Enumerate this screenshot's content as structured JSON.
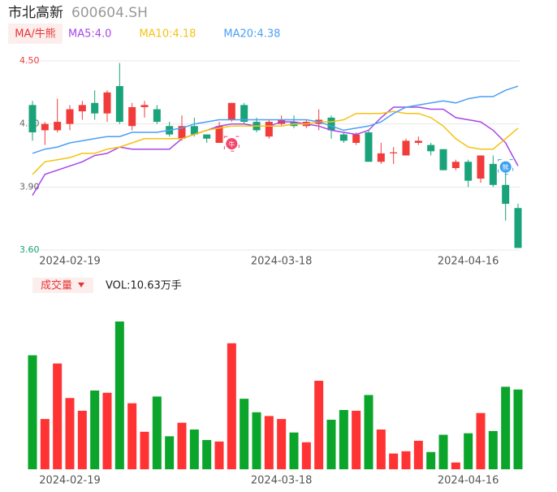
{
  "header": {
    "title": "市北高新",
    "code": "600604.SH"
  },
  "chart_data": [
    {
      "type": "candlestick",
      "toggle_label": "MA/牛熊",
      "categories": [
        null,
        null,
        null,
        "2024-02-19",
        null,
        null,
        null,
        null,
        null,
        null,
        null,
        null,
        null,
        null,
        null,
        null,
        null,
        null,
        null,
        null,
        "2024-03-18",
        null,
        null,
        null,
        null,
        null,
        null,
        null,
        null,
        null,
        null,
        null,
        null,
        null,
        null,
        "2024-04-16",
        null,
        null,
        null,
        null
      ],
      "open": [
        4.29,
        4.17,
        4.17,
        4.2,
        4.26,
        4.3,
        4.25,
        4.38,
        4.19,
        4.28,
        4.27,
        4.19,
        4.13,
        4.19,
        4.15,
        4.11,
        4.22,
        4.29,
        4.21,
        4.14,
        4.2,
        4.21,
        4.19,
        4.2,
        4.23,
        4.15,
        4.11,
        4.16,
        4.02,
        4.06,
        4.05,
        4.11,
        4.1,
        4.08,
        3.99,
        4.02,
        3.94,
        4.01,
        3.91,
        3.8
      ],
      "high": [
        4.31,
        4.21,
        4.32,
        4.29,
        4.31,
        4.36,
        4.36,
        4.49,
        4.3,
        4.31,
        4.29,
        4.21,
        4.24,
        4.23,
        4.15,
        4.21,
        4.3,
        4.3,
        4.23,
        4.22,
        4.24,
        4.24,
        4.22,
        4.27,
        4.24,
        4.16,
        4.16,
        4.17,
        4.11,
        4.09,
        4.13,
        4.14,
        4.11,
        4.08,
        4.03,
        4.03,
        4.05,
        4.05,
        3.98,
        3.82
      ],
      "low": [
        4.12,
        4.1,
        4.16,
        4.17,
        4.22,
        4.22,
        4.21,
        4.2,
        4.17,
        4.23,
        4.2,
        4.14,
        4.12,
        4.14,
        4.11,
        4.11,
        4.21,
        4.2,
        4.16,
        4.13,
        4.19,
        4.18,
        4.18,
        4.17,
        4.13,
        4.11,
        4.1,
        4.02,
        4.01,
        4.01,
        4.05,
        4.1,
        4.05,
        3.98,
        3.98,
        3.9,
        3.92,
        3.9,
        3.74,
        3.61
      ],
      "close": [
        4.16,
        4.2,
        4.21,
        4.27,
        4.29,
        4.25,
        4.35,
        4.21,
        4.28,
        4.29,
        4.21,
        4.15,
        4.19,
        4.15,
        4.13,
        4.19,
        4.3,
        4.21,
        4.17,
        4.21,
        4.22,
        4.19,
        4.21,
        4.22,
        4.17,
        4.12,
        4.15,
        4.02,
        4.06,
        4.065,
        4.12,
        4.12,
        4.07,
        3.98,
        4.02,
        3.93,
        4.05,
        3.91,
        3.82,
        3.61
      ],
      "up_color": "#f23b3b",
      "down_color": "#1aa37a",
      "series": [
        {
          "name": "MA5:4.0",
          "color": "#a646e8",
          "values": [
            3.86,
            3.96,
            3.98,
            4.0,
            4.02,
            4.05,
            4.06,
            4.09,
            4.08,
            4.08,
            4.08,
            4.08,
            4.13,
            4.15,
            4.17,
            4.19,
            4.2,
            4.2,
            4.19,
            4.19,
            4.21,
            4.21,
            4.2,
            4.19,
            4.17,
            4.16,
            4.15,
            4.17,
            4.23,
            4.28,
            4.28,
            4.28,
            4.27,
            4.27,
            4.23,
            4.22,
            4.21,
            4.17,
            4.11,
            4.0
          ]
        },
        {
          "name": "MA10:4.18",
          "color": "#f5c211",
          "values": [
            3.96,
            4.02,
            4.03,
            4.04,
            4.06,
            4.06,
            4.08,
            4.09,
            4.11,
            4.13,
            4.13,
            4.13,
            4.13,
            4.15,
            4.17,
            4.18,
            4.19,
            4.19,
            4.19,
            4.19,
            4.19,
            4.2,
            4.2,
            4.21,
            4.21,
            4.22,
            4.25,
            4.25,
            4.25,
            4.26,
            4.25,
            4.25,
            4.23,
            4.19,
            4.13,
            4.09,
            4.08,
            4.08,
            4.13,
            4.18
          ]
        },
        {
          "name": "MA20:4.38",
          "color": "#4a9ff5",
          "values": [
            4.06,
            4.08,
            4.09,
            4.11,
            4.12,
            4.13,
            4.14,
            4.14,
            4.16,
            4.16,
            4.16,
            4.17,
            4.18,
            4.2,
            4.21,
            4.22,
            4.22,
            4.22,
            4.22,
            4.22,
            4.22,
            4.22,
            4.22,
            4.21,
            4.19,
            4.17,
            4.18,
            4.19,
            4.21,
            4.25,
            4.28,
            4.29,
            4.3,
            4.31,
            4.3,
            4.32,
            4.33,
            4.33,
            4.36,
            4.38
          ]
        }
      ],
      "ylim": [
        3.6,
        4.5
      ],
      "yticks": [
        {
          "value": 4.5,
          "label": "4.50"
        },
        {
          "value": 4.2,
          "label": "4.20"
        },
        {
          "value": 3.9,
          "label": "3.90"
        },
        {
          "value": 3.6,
          "label": "3.60"
        }
      ],
      "ytick_colors": [
        "#f23b3b",
        "#666666",
        "#666666",
        "#1aa37a"
      ],
      "grid": true,
      "markers": [
        {
          "label": "牛",
          "index": 16,
          "color": "#f2456a",
          "position": "below"
        },
        {
          "label": "熊",
          "index": 38,
          "color": "#3aa0f0",
          "position": "above"
        }
      ]
    },
    {
      "type": "bar",
      "label": "成交量",
      "indicator": "VOL:10.63万手",
      "categories": [
        null,
        null,
        null,
        "2024-02-19",
        null,
        null,
        null,
        null,
        null,
        null,
        null,
        null,
        null,
        null,
        null,
        null,
        null,
        null,
        null,
        null,
        "2024-03-18",
        null,
        null,
        null,
        null,
        null,
        null,
        null,
        null,
        null,
        null,
        null,
        null,
        null,
        null,
        "2024-04-16",
        null,
        null,
        null,
        null
      ],
      "values": [
        15.2,
        6.7,
        14.1,
        9.5,
        7.8,
        10.5,
        10.2,
        19.7,
        8.8,
        5.0,
        9.7,
        4.4,
        6.2,
        5.3,
        3.9,
        3.7,
        16.8,
        9.4,
        7.6,
        7.1,
        6.7,
        4.9,
        3.6,
        11.8,
        6.6,
        7.9,
        7.8,
        9.9,
        5.3,
        2.1,
        2.4,
        3.8,
        2.3,
        4.6,
        0.9,
        4.8,
        7.5,
        5.1,
        11.0,
        10.63
      ],
      "up_color": "#ff3333",
      "down_color": "#0aa52a"
    }
  ]
}
